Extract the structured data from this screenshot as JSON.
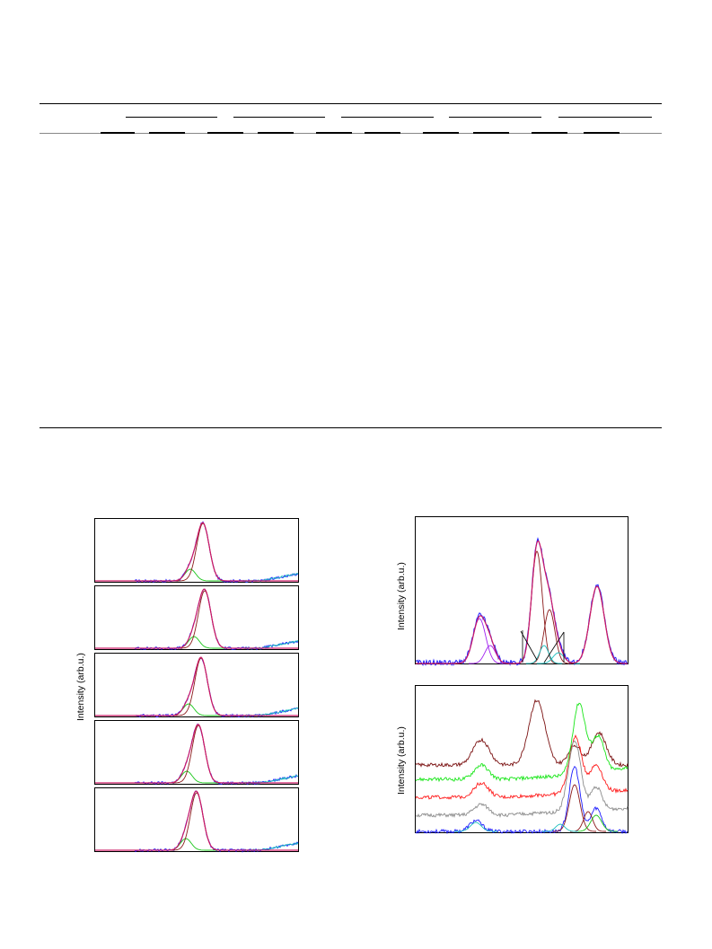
{
  "table": {
    "column_groups": 5
  },
  "figure_left": {
    "ylabel": "Intensity (arb.u.)",
    "panels": 5,
    "colors": {
      "data": "#1a1aff",
      "fit": "#cc1a66",
      "main_peak": "#8b1a1a",
      "minor_peak": "#19c619",
      "tail": "#17bcbc"
    }
  },
  "figure_right_top": {
    "ylabel": "Intensity (arb.u.)",
    "colors": {
      "data": "#1a1aff",
      "fit": "#cc1a66",
      "component_a": "#a020f0",
      "component_b": "#8b1a1a",
      "component_c": "#17bcbc"
    }
  },
  "figure_right_bottom": {
    "ylabel": "Intensity (arb.u.)",
    "series_colors": [
      "#7a1010",
      "#19e619",
      "#ff1a1a",
      "#8c8c8c",
      "#1a1aff",
      "#17bcbc",
      "#8b1a1a",
      "#19c619"
    ]
  }
}
